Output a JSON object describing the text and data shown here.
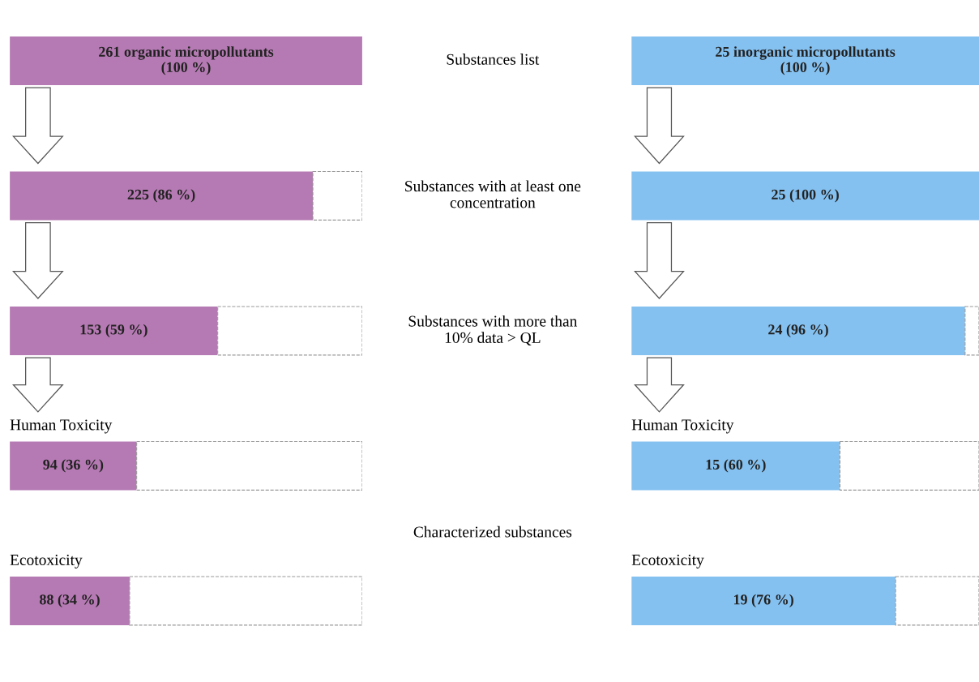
{
  "chart_data": [
    {
      "type": "bar",
      "orientation": "horizontal",
      "stacked": true,
      "xlim": [
        0,
        100
      ],
      "categories": [
        null,
        null,
        null,
        "Human Toxicity",
        "Ecotoxicity"
      ],
      "series": [
        {
          "color": "#b57ab3",
          "values": [
            100,
            86,
            59,
            36,
            34
          ],
          "value_labels": [
            "261 organic micropollutants\n(100 %)",
            "225 (86 %)",
            "153 (59 %)",
            "94 (36 %)",
            "88 (34 %)"
          ]
        },
        {
          "color": "#ffffff",
          "line_style": "dashed",
          "values": [
            0,
            14,
            41,
            64,
            66
          ]
        }
      ],
      "annotations": [
        "Substances list",
        "Substances with at least one\nconcentration",
        "Substances with more than\n10% data > QL",
        "Characterized substances"
      ]
    },
    {
      "type": "bar",
      "orientation": "horizontal",
      "stacked": true,
      "xlim": [
        0,
        100
      ],
      "categories": [
        null,
        null,
        null,
        "Human Toxicity",
        "Ecotoxicity"
      ],
      "series": [
        {
          "color": "#85c1f0",
          "values": [
            100,
            100,
            96,
            60,
            76
          ],
          "value_labels": [
            "25 inorganic micropollutants\n(100 %)",
            "25 (100 %)",
            "24 (96 %)",
            "15 (60 %)",
            "19 (76 %)"
          ]
        },
        {
          "color": "#ffffff",
          "line_style": "dashed",
          "values": [
            0,
            0,
            4,
            40,
            24
          ]
        }
      ]
    }
  ]
}
